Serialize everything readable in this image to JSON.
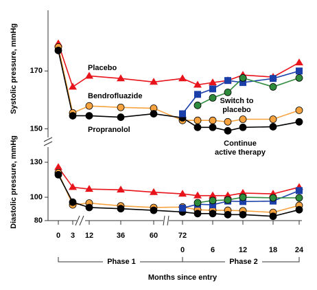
{
  "chart_data": [
    {
      "type": "line",
      "ylabel": "Systolic pressure, mmHg",
      "ylim": [
        147,
        191
      ],
      "yticks": [
        150,
        170
      ],
      "series": [
        {
          "name": "Placebo",
          "color": "#e8141b",
          "marker": "triangle",
          "values": [
            179.5,
            164.5,
            168.3,
            167.4,
            166.2,
            167.4,
            165.2,
            166,
            166.7,
            168.6,
            167.9,
            172.9
          ]
        },
        {
          "name": "Bendrofluazide",
          "color": "#f7a440",
          "marker": "circle",
          "values": [
            178.3,
            155.5,
            157.9,
            157.4,
            157.1,
            152.9,
            152.9,
            152.9,
            152.4,
            153.3,
            153.3,
            156.4
          ]
        },
        {
          "name": "Propranolol",
          "color": "#000000",
          "marker": "circle",
          "values": [
            177.1,
            154.5,
            154.5,
            154,
            155.2,
            153.8,
            150.5,
            150.5,
            149.3,
            150.5,
            150.7,
            152.4
          ]
        },
        {
          "color": "#1a3fa8",
          "marker": "square",
          "values": [
            null,
            null,
            null,
            null,
            null,
            155.2,
            161.9,
            163.8,
            166.7,
            166,
            167.4,
            170
          ]
        },
        {
          "color": "#2e8b3c",
          "marker": "circle",
          "values": [
            null,
            null,
            null,
            null,
            null,
            null,
            158.1,
            160.7,
            162.6,
            167.6,
            164.5,
            167.6
          ]
        }
      ],
      "annotations": [
        {
          "lines": [
            "Switch to",
            "placebo"
          ],
          "color": "#6b2d8b"
        },
        {
          "lines": [
            "Continue",
            "active therapy"
          ],
          "color": "#1a3fa8"
        }
      ]
    },
    {
      "type": "line",
      "ylabel": "Diastolic pressure, mmHg",
      "ylim": [
        80,
        143
      ],
      "yticks": [
        80,
        100,
        130
      ],
      "categories": [
        "0",
        "3",
        "12",
        "36",
        "60",
        "72",
        null,
        null,
        null,
        null,
        null,
        null
      ],
      "categories2": [
        null,
        null,
        null,
        null,
        null,
        "0",
        null,
        "6",
        null,
        "12",
        "18",
        "24"
      ],
      "phases": [
        "Phase 1",
        "Phase 2"
      ],
      "xlabel": "Months since entry",
      "series": [
        {
          "color": "#e8141b",
          "marker": "triangle",
          "values": [
            125.7,
            108.6,
            107,
            106.4,
            104.3,
            102.9,
            101.4,
            101.4,
            101.4,
            103.6,
            102.9,
            108.6
          ]
        },
        {
          "color": "#f7a440",
          "marker": "circle",
          "values": [
            121,
            93.5,
            95,
            92.6,
            91.2,
            91.6,
            89.3,
            88.8,
            88.8,
            88.4,
            87,
            93
          ]
        },
        {
          "color": "#000000",
          "marker": "circle",
          "values": [
            119.3,
            95.8,
            91.2,
            90.2,
            88.8,
            87.4,
            86,
            86,
            85.1,
            85.1,
            83.7,
            89.3
          ]
        },
        {
          "color": "#1a3fa8",
          "marker": "square",
          "values": [
            null,
            null,
            null,
            null,
            null,
            90.7,
            94,
            93.5,
            96.7,
            96.3,
            96.7,
            105.7
          ]
        },
        {
          "color": "#2e8b3c",
          "marker": "circle",
          "values": [
            null,
            null,
            null,
            null,
            null,
            null,
            95.3,
            97.2,
            97.7,
            100,
            99.5,
            99.5
          ]
        }
      ]
    }
  ]
}
